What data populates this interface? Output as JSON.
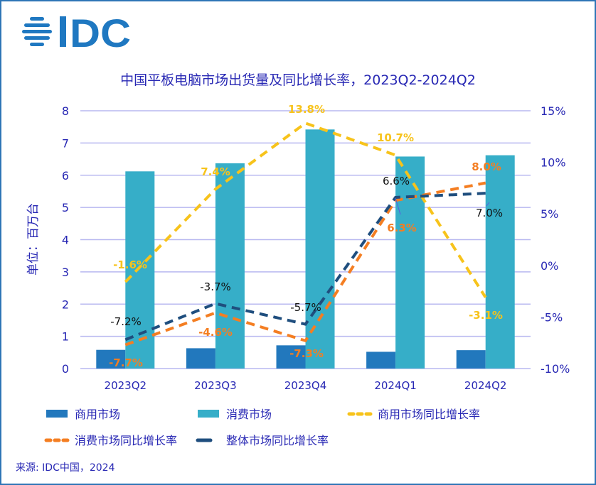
{
  "logo_text": "IDC",
  "source": "来源: IDC中国，2024",
  "colors": {
    "commercial": "#2278BD",
    "consumer": "#36AEC8",
    "commercial_yoy": "#F7C31B",
    "consumer_yoy": "#F47E22",
    "total_yoy": "#1F4E7E",
    "axis_text": "#2828B4",
    "grid": "#B8B8F0"
  },
  "chart_data": {
    "type": "bar+line",
    "title": "中国平板电脑市场出货量及同比增长率，2023Q2-2024Q2",
    "ylabel": "单位：百万台",
    "categories": [
      "2023Q2",
      "2023Q3",
      "2023Q4",
      "2024Q1",
      "2024Q2"
    ],
    "ylim": [
      0,
      8
    ],
    "yticks": [
      "0",
      "1",
      "2",
      "3",
      "4",
      "5",
      "6",
      "7",
      "8"
    ],
    "y2lim": [
      -10,
      15
    ],
    "y2ticks": [
      "-10%",
      "-5%",
      "0%",
      "5%",
      "10%",
      "15%"
    ],
    "grid": true,
    "legend_position": "bottom",
    "bars": [
      {
        "name": "商用市场",
        "values": [
          0.58,
          0.63,
          0.72,
          0.52,
          0.57
        ]
      },
      {
        "name": "消费市场",
        "values": [
          6.12,
          6.37,
          7.42,
          6.58,
          6.62
        ]
      }
    ],
    "lines": [
      {
        "name": "商用市场同比增长率",
        "values": [
          -1.6,
          7.4,
          13.8,
          10.7,
          -3.1
        ],
        "labels": [
          "-1.6%",
          "7.4%",
          "13.8%",
          "10.7%",
          "-3.1%"
        ]
      },
      {
        "name": "消费市场同比增长率",
        "values": [
          -7.7,
          -4.6,
          -7.3,
          6.3,
          8.0
        ],
        "labels": [
          "-7.7%",
          "-4.6%",
          "-7.3%",
          "6.3%",
          "8.0%"
        ]
      },
      {
        "name": "整体市场同比增长率",
        "values": [
          -7.2,
          -3.7,
          -5.7,
          6.6,
          7.0
        ],
        "labels": [
          "-7.2%",
          "-3.7%",
          "-5.7%",
          "6.6%",
          "7.0%"
        ]
      }
    ]
  }
}
